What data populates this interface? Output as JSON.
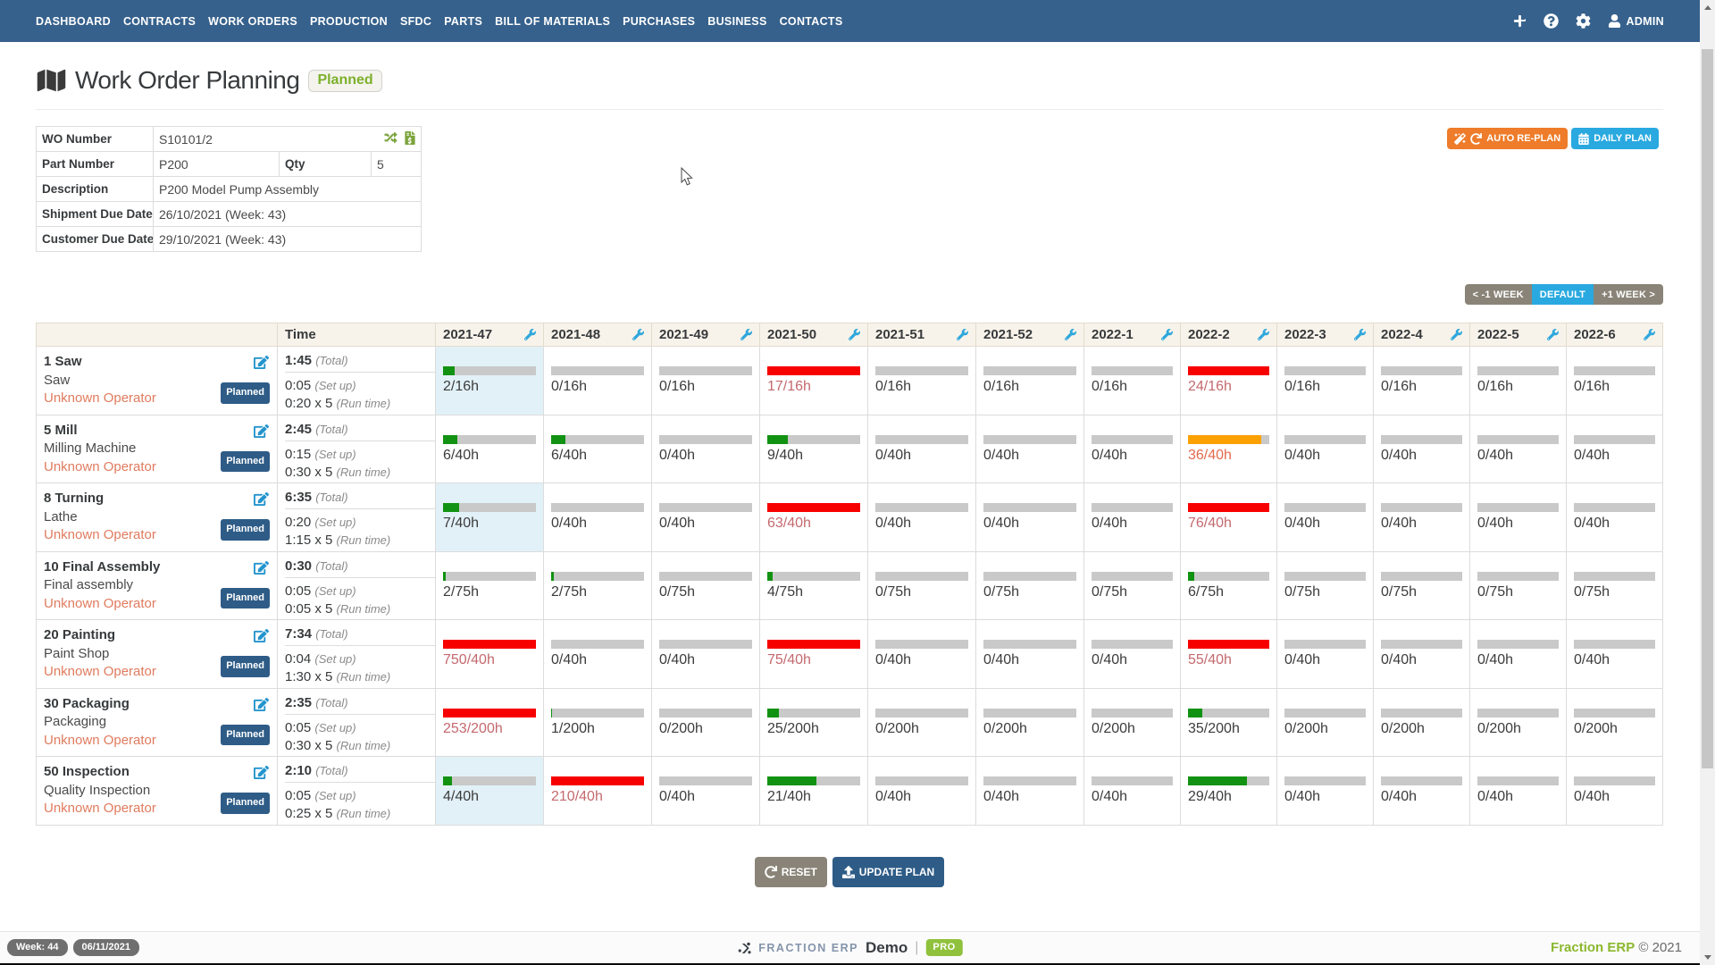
{
  "navbar": {
    "items": [
      "DASHBOARD",
      "CONTRACTS",
      "WORK ORDERS",
      "PRODUCTION",
      "SFDC",
      "PARTS",
      "BILL OF MATERIALS",
      "PURCHASES",
      "BUSINESS",
      "CONTACTS"
    ],
    "admin_label": "ADMIN"
  },
  "header": {
    "title": "Work Order Planning",
    "status_badge": "Planned"
  },
  "actions": {
    "auto_replan": "AUTO RE-PLAN",
    "daily_plan": "DAILY PLAN"
  },
  "info_table": {
    "wo_number_label": "WO Number",
    "wo_number": "S10101/2",
    "part_number_label": "Part Number",
    "part_number": "P200",
    "qty_label": "Qty",
    "qty": "5",
    "description_label": "Description",
    "description": "P200 Model Pump Assembly",
    "shipment_label": "Shipment Due Date",
    "shipment": "26/10/2021 (Week: 43)",
    "customer_label": "Customer Due Date",
    "customer": "29/10/2021 (Week: 43)"
  },
  "week_nav": {
    "prev": "< -1 WEEK",
    "current": "DEFAULT",
    "next": "+1 WEEK >"
  },
  "plan_table": {
    "time_header": "Time",
    "weeks": [
      "2021-47",
      "2021-48",
      "2021-49",
      "2021-50",
      "2021-51",
      "2021-52",
      "2022-1",
      "2022-2",
      "2022-3",
      "2022-4",
      "2022-5",
      "2022-6"
    ],
    "total_suffix": "(Total)",
    "setup_suffix": "(Set up)",
    "runtime_suffix": "(Run time)",
    "rows": [
      {
        "op": "1 Saw",
        "machine": "Saw",
        "operator": "Unknown Operator",
        "status": "Planned",
        "total": "1:45",
        "setup": "0:05",
        "runtime": "0:20 x 5",
        "highlight_week": 0,
        "cells": [
          "2/16h",
          "0/16h",
          "0/16h",
          "17/16h",
          "0/16h",
          "0/16h",
          "0/16h",
          "24/16h",
          "0/16h",
          "0/16h",
          "0/16h",
          "0/16h"
        ]
      },
      {
        "op": "5 Mill",
        "machine": "Milling Machine",
        "operator": "Unknown Operator",
        "status": "Planned",
        "total": "2:45",
        "setup": "0:15",
        "runtime": "0:30 x 5",
        "highlight_week": null,
        "cells": [
          "6/40h",
          "6/40h",
          "0/40h",
          "9/40h",
          "0/40h",
          "0/40h",
          "0/40h",
          "36/40h",
          "0/40h",
          "0/40h",
          "0/40h",
          "0/40h"
        ]
      },
      {
        "op": "8 Turning",
        "machine": "Lathe",
        "operator": "Unknown Operator",
        "status": "Planned",
        "total": "6:35",
        "setup": "0:20",
        "runtime": "1:15 x 5",
        "highlight_week": 0,
        "cells": [
          "7/40h",
          "0/40h",
          "0/40h",
          "63/40h",
          "0/40h",
          "0/40h",
          "0/40h",
          "76/40h",
          "0/40h",
          "0/40h",
          "0/40h",
          "0/40h"
        ]
      },
      {
        "op": "10 Final Assembly",
        "machine": "Final assembly",
        "operator": "Unknown Operator",
        "status": "Planned",
        "total": "0:30",
        "setup": "0:05",
        "runtime": "0:05 x 5",
        "highlight_week": null,
        "cells": [
          "2/75h",
          "2/75h",
          "0/75h",
          "4/75h",
          "0/75h",
          "0/75h",
          "0/75h",
          "6/75h",
          "0/75h",
          "0/75h",
          "0/75h",
          "0/75h"
        ]
      },
      {
        "op": "20 Painting",
        "machine": "Paint Shop",
        "operator": "Unknown Operator",
        "status": "Planned",
        "total": "7:34",
        "setup": "0:04",
        "runtime": "1:30 x 5",
        "highlight_week": null,
        "cells": [
          "750/40h",
          "0/40h",
          "0/40h",
          "75/40h",
          "0/40h",
          "0/40h",
          "0/40h",
          "55/40h",
          "0/40h",
          "0/40h",
          "0/40h",
          "0/40h"
        ]
      },
      {
        "op": "30 Packaging",
        "machine": "Packaging",
        "operator": "Unknown Operator",
        "status": "Planned",
        "total": "2:35",
        "setup": "0:05",
        "runtime": "0:30 x 5",
        "highlight_week": null,
        "cells": [
          "253/200h",
          "1/200h",
          "0/200h",
          "25/200h",
          "0/200h",
          "0/200h",
          "0/200h",
          "35/200h",
          "0/200h",
          "0/200h",
          "0/200h",
          "0/200h"
        ]
      },
      {
        "op": "50 Inspection",
        "machine": "Quality Inspection",
        "operator": "Unknown Operator",
        "status": "Planned",
        "total": "2:10",
        "setup": "0:05",
        "runtime": "0:25 x 5",
        "highlight_week": 0,
        "cells": [
          "4/40h",
          "210/40h",
          "0/40h",
          "21/40h",
          "0/40h",
          "0/40h",
          "0/40h",
          "29/40h",
          "0/40h",
          "0/40h",
          "0/40h",
          "0/40h"
        ]
      }
    ]
  },
  "bottom_actions": {
    "reset": "RESET",
    "update": "UPDATE PLAN"
  },
  "footer": {
    "week_pill": "Week: 44",
    "date_pill": "06/11/2021",
    "brand": "FRACTION ERP",
    "env": "Demo",
    "pro_badge": "PRO",
    "copyright_brand": "Fraction ERP",
    "copyright": "© 2021"
  },
  "colors": {
    "navbar": "#36618c",
    "accent_blue": "#29a9e0",
    "accent_orange": "#ee7c2a",
    "dark_blue": "#2e5c87",
    "bar_green": "#129212",
    "bar_red": "#f70000",
    "bar_orange": "#fca103",
    "bar_track": "#c9c9c9",
    "highlight_cell": "#e2f1f8",
    "over_text": "#c4696e",
    "warn_text": "#e4694d",
    "operator_text": "#e07b5e",
    "badge_green": "#7db02c",
    "footer_green": "#8cb82e"
  }
}
